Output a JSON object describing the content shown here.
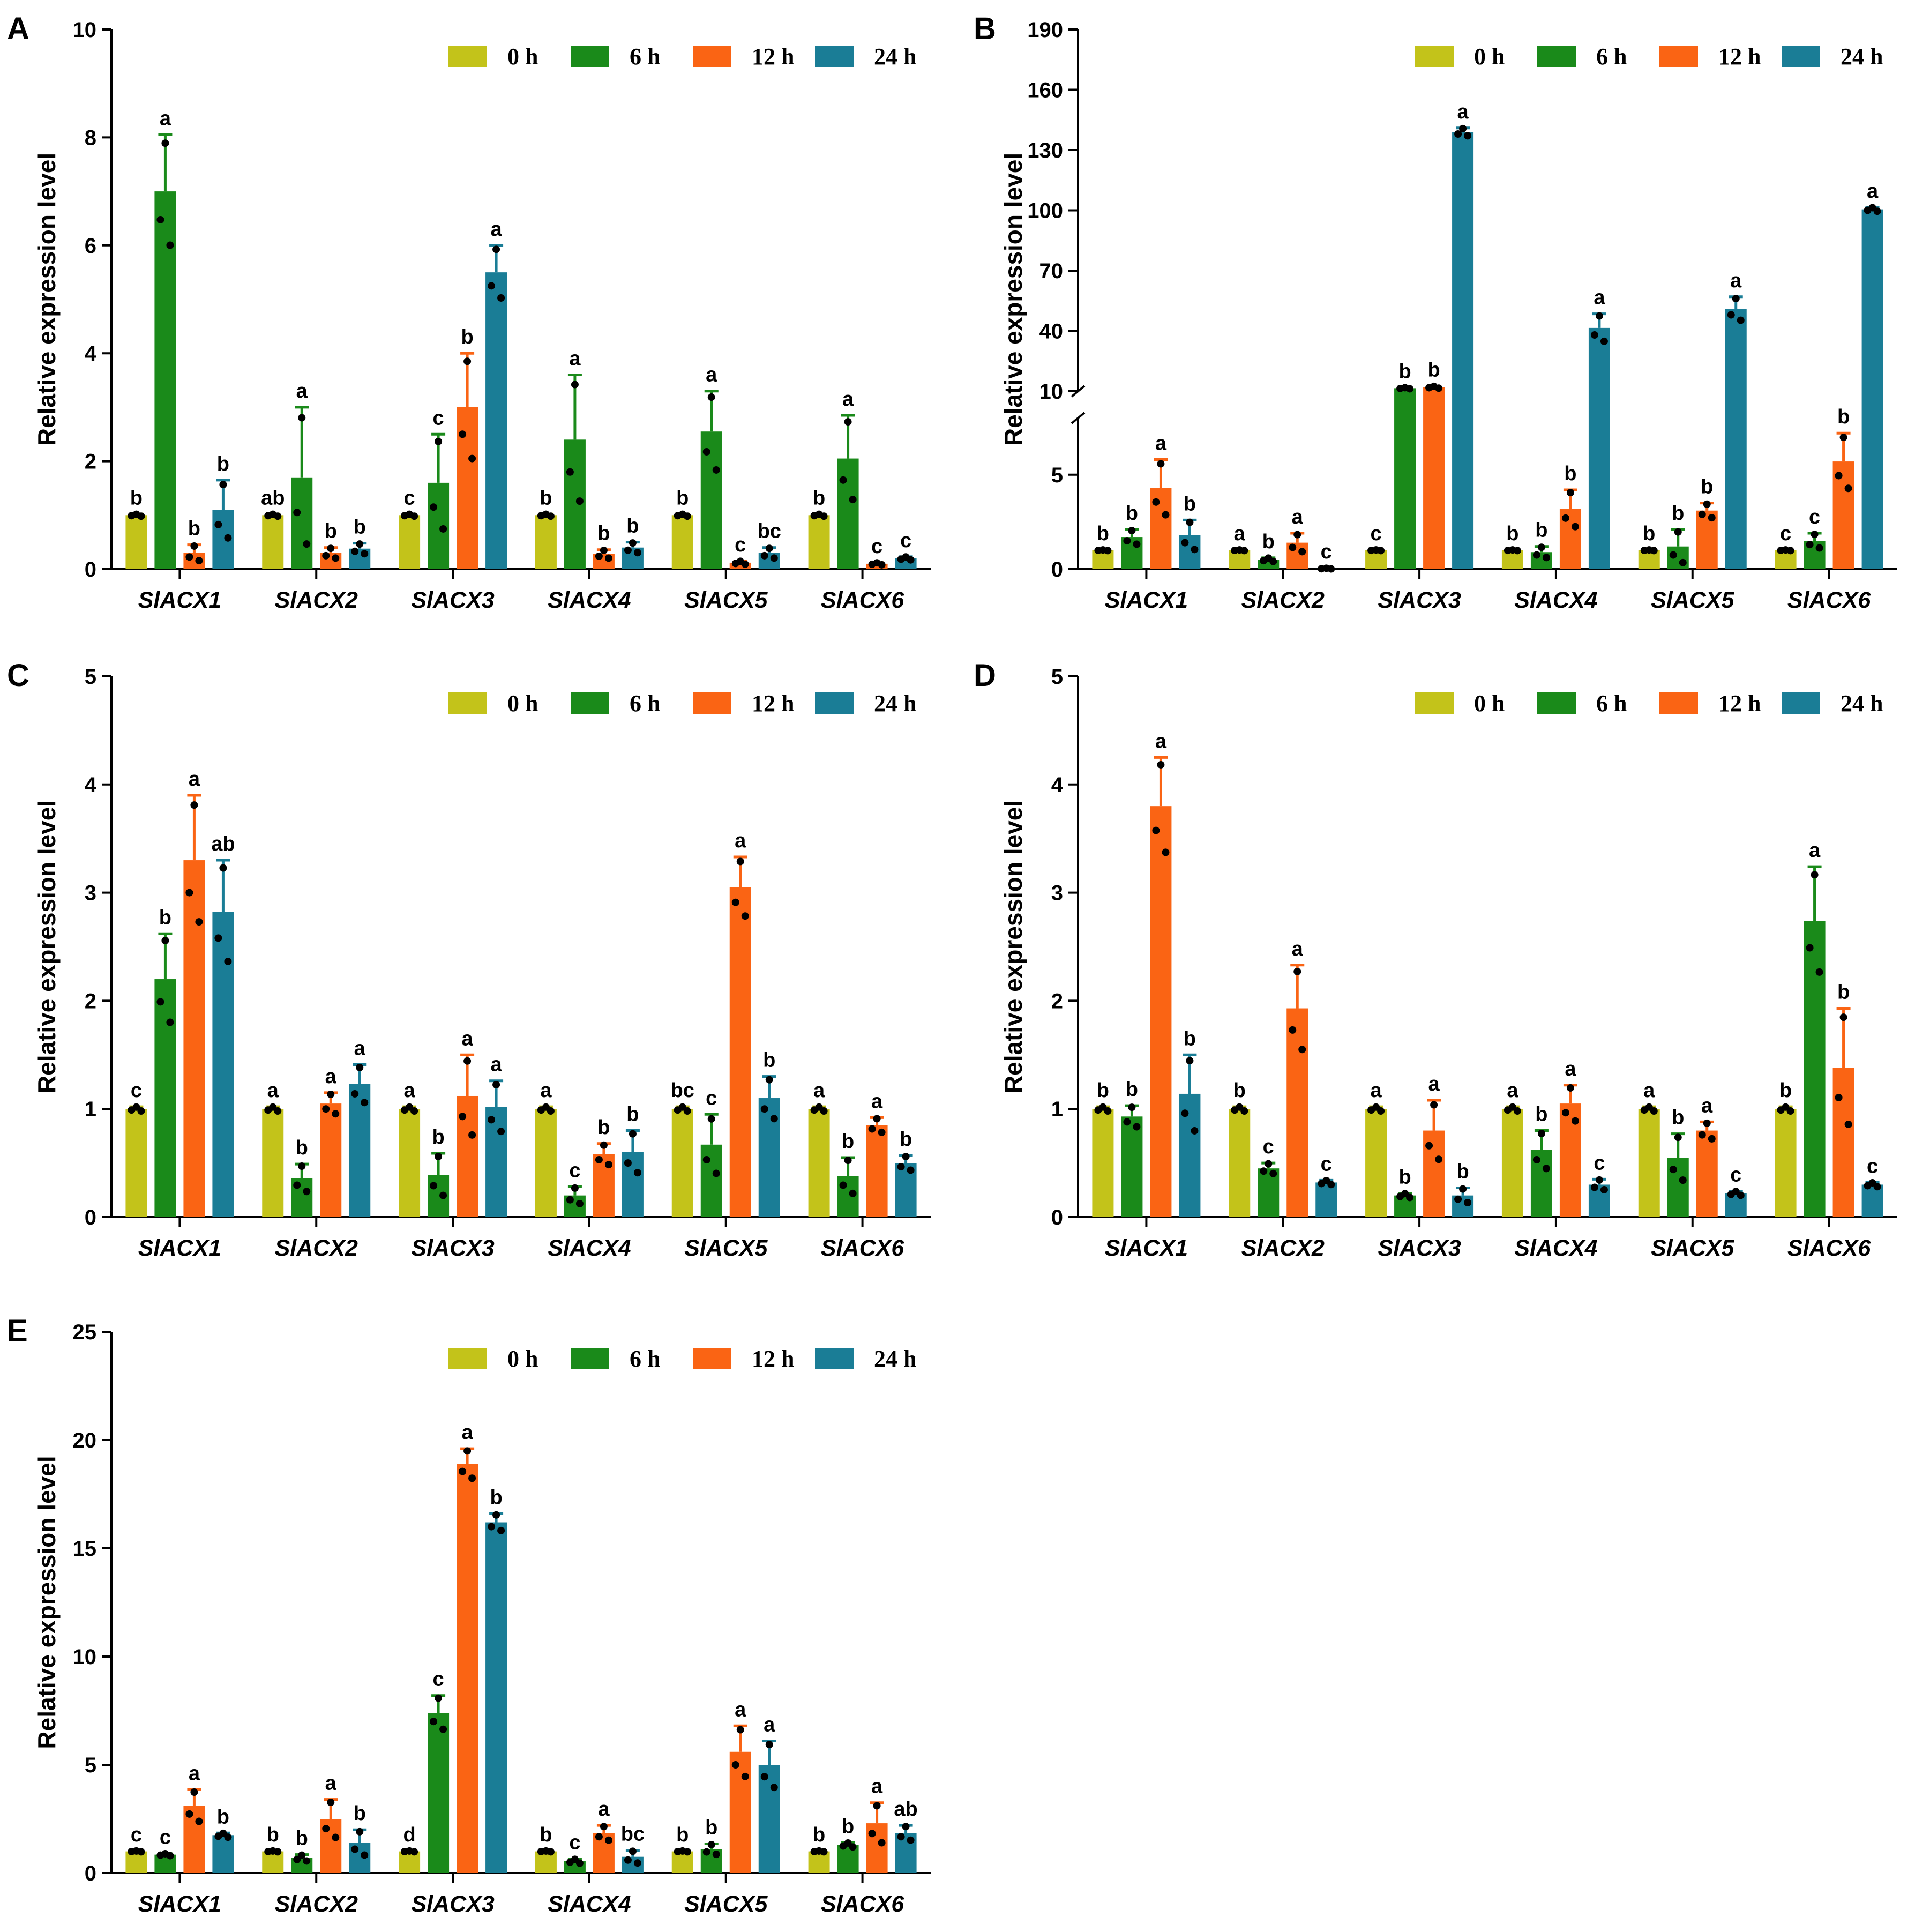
{
  "legend": [
    "0 h",
    "6 h",
    "12 h",
    "24 h"
  ],
  "colors": {
    "0 h": "#c3c31a",
    "6 h": "#1a8a1a",
    "12 h": "#fa6414",
    "24 h": "#1a7d96"
  },
  "chart_data": [
    {
      "panel": "A",
      "type": "bar",
      "ylabel": "Relative expression level",
      "xlabel": "",
      "categories": [
        "SlACX1",
        "SlACX2",
        "SlACX3",
        "SlACX4",
        "SlACX5",
        "SlACX6"
      ],
      "ylim": [
        0,
        10
      ],
      "yticks": [
        0,
        2,
        4,
        6,
        8,
        10
      ],
      "legend_position": "top-right",
      "series": [
        {
          "name": "0 h",
          "values": [
            1,
            1,
            1,
            1,
            1,
            1
          ],
          "errors": [
            0.02,
            0.02,
            0.02,
            0.02,
            0.02,
            0.02
          ],
          "labels": [
            "b",
            "ab",
            "c",
            "b",
            "b",
            "b"
          ]
        },
        {
          "name": "6 h",
          "values": [
            7.0,
            1.7,
            1.6,
            2.4,
            2.55,
            2.05
          ],
          "errors": [
            1.05,
            1.3,
            0.9,
            1.2,
            0.75,
            0.8
          ],
          "labels": [
            "a",
            "a",
            "c",
            "a",
            "a",
            "a"
          ]
        },
        {
          "name": "12 h",
          "values": [
            0.3,
            0.3,
            3.0,
            0.28,
            0.12,
            0.1
          ],
          "errors": [
            0.15,
            0.1,
            1.0,
            0.08,
            0.03,
            0.02
          ],
          "labels": [
            "b",
            "b",
            "b",
            "b",
            "c",
            "c"
          ]
        },
        {
          "name": "24 h",
          "values": [
            1.1,
            0.38,
            5.5,
            0.4,
            0.3,
            0.2
          ],
          "errors": [
            0.55,
            0.1,
            0.5,
            0.1,
            0.1,
            0.03
          ],
          "labels": [
            "b",
            "b",
            "a",
            "b",
            "bc",
            "c"
          ]
        }
      ]
    },
    {
      "panel": "B",
      "type": "bar",
      "ylabel": "Relative expression level",
      "xlabel": "",
      "categories": [
        "SlACX1",
        "SlACX2",
        "SlACX3",
        "SlACX4",
        "SlACX5",
        "SlACX6"
      ],
      "y_axis_break": {
        "lower": [
          0,
          8
        ],
        "upper": [
          10,
          190
        ]
      },
      "yticks_lower": [
        0,
        5
      ],
      "yticks_upper": [
        10,
        40,
        70,
        100,
        130,
        160,
        190
      ],
      "legend_position": "top-right",
      "series": [
        {
          "name": "0 h",
          "values": [
            1,
            1,
            1,
            1,
            1,
            1
          ],
          "errors": [
            0.02,
            0.02,
            0.02,
            0.02,
            0.02,
            0.02
          ],
          "labels": [
            "b",
            "a",
            "c",
            "b",
            "b",
            "c"
          ]
        },
        {
          "name": "6 h",
          "values": [
            1.7,
            0.5,
            11.5,
            0.9,
            1.2,
            1.5
          ],
          "errors": [
            0.4,
            0.1,
            0.3,
            0.3,
            0.9,
            0.4
          ],
          "labels": [
            "b",
            "b",
            "b",
            "b",
            "b",
            "c"
          ]
        },
        {
          "name": "12 h",
          "values": [
            4.3,
            1.4,
            12.0,
            3.2,
            3.1,
            5.7
          ],
          "errors": [
            1.5,
            0.5,
            0.5,
            1.0,
            0.4,
            1.5
          ],
          "labels": [
            "a",
            "a",
            "b",
            "b",
            "b",
            "b"
          ]
        },
        {
          "name": "24 h",
          "values": [
            1.8,
            0.03,
            139,
            41.5,
            51,
            100.5
          ],
          "errors": [
            0.8,
            0.02,
            2,
            7,
            6,
            1
          ],
          "labels": [
            "b",
            "c",
            "a",
            "a",
            "a",
            "a"
          ]
        }
      ]
    },
    {
      "panel": "C",
      "type": "bar",
      "ylabel": "Relative expression level",
      "xlabel": "",
      "categories": [
        "SlACX1",
        "SlACX2",
        "SlACX3",
        "SlACX4",
        "SlACX5",
        "SlACX6"
      ],
      "ylim": [
        0,
        5
      ],
      "yticks": [
        0,
        1,
        2,
        3,
        4,
        5
      ],
      "legend_position": "top-right",
      "series": [
        {
          "name": "0 h",
          "values": [
            1,
            1,
            1,
            1,
            1,
            1
          ],
          "errors": [
            0.02,
            0.02,
            0.02,
            0.02,
            0.02,
            0.02
          ],
          "labels": [
            "c",
            "a",
            "a",
            "a",
            "bc",
            "a"
          ]
        },
        {
          "name": "6 h",
          "values": [
            2.2,
            0.36,
            0.39,
            0.2,
            0.67,
            0.38
          ],
          "errors": [
            0.42,
            0.13,
            0.2,
            0.08,
            0.28,
            0.17
          ],
          "labels": [
            "b",
            "b",
            "b",
            "c",
            "c",
            "b"
          ]
        },
        {
          "name": "12 h",
          "values": [
            3.3,
            1.05,
            1.12,
            0.58,
            3.05,
            0.85
          ],
          "errors": [
            0.6,
            0.1,
            0.38,
            0.1,
            0.28,
            0.07
          ],
          "labels": [
            "a",
            "a",
            "a",
            "b",
            "a",
            "a"
          ]
        },
        {
          "name": "24 h",
          "values": [
            2.82,
            1.23,
            1.02,
            0.6,
            1.1,
            0.5
          ],
          "errors": [
            0.48,
            0.18,
            0.24,
            0.2,
            0.2,
            0.07
          ],
          "labels": [
            "ab",
            "a",
            "a",
            "b",
            "b",
            "b"
          ]
        }
      ]
    },
    {
      "panel": "D",
      "type": "bar",
      "ylabel": "Relative expression level",
      "xlabel": "",
      "categories": [
        "SlACX1",
        "SlACX2",
        "SlACX3",
        "SlACX4",
        "SlACX5",
        "SlACX6"
      ],
      "ylim": [
        0,
        5
      ],
      "yticks": [
        0,
        1,
        2,
        3,
        4,
        5
      ],
      "legend_position": "top-right",
      "series": [
        {
          "name": "0 h",
          "values": [
            1,
            1,
            1,
            1,
            1,
            1
          ],
          "errors": [
            0.02,
            0.02,
            0.02,
            0.02,
            0.02,
            0.02
          ],
          "labels": [
            "b",
            "b",
            "a",
            "a",
            "a",
            "b"
          ]
        },
        {
          "name": "6 h",
          "values": [
            0.93,
            0.45,
            0.2,
            0.62,
            0.55,
            2.74
          ],
          "errors": [
            0.1,
            0.05,
            0.02,
            0.18,
            0.22,
            0.5
          ],
          "labels": [
            "b",
            "c",
            "b",
            "b",
            "b",
            "a"
          ]
        },
        {
          "name": "12 h",
          "values": [
            3.8,
            1.93,
            0.8,
            1.05,
            0.8,
            1.38
          ],
          "errors": [
            0.45,
            0.4,
            0.28,
            0.17,
            0.08,
            0.55
          ],
          "labels": [
            "a",
            "a",
            "a",
            "a",
            "a",
            "b"
          ]
        },
        {
          "name": "24 h",
          "values": [
            1.14,
            0.32,
            0.2,
            0.3,
            0.22,
            0.3
          ],
          "errors": [
            0.36,
            0.02,
            0.07,
            0.05,
            0.02,
            0.02
          ],
          "labels": [
            "b",
            "c",
            "b",
            "c",
            "c",
            "c"
          ]
        }
      ]
    },
    {
      "panel": "E",
      "type": "bar",
      "ylabel": "Relative expression level",
      "xlabel": "",
      "categories": [
        "SlACX1",
        "SlACX2",
        "SlACX3",
        "SlACX4",
        "SlACX5",
        "SlACX6"
      ],
      "ylim": [
        0,
        25
      ],
      "yticks": [
        0,
        5,
        10,
        15,
        20,
        25
      ],
      "legend_position": "top-right",
      "series": [
        {
          "name": "0 h",
          "values": [
            1,
            1,
            1,
            1,
            1,
            1
          ],
          "errors": [
            0.02,
            0.02,
            0.02,
            0.02,
            0.02,
            0.02
          ],
          "labels": [
            "c",
            "b",
            "d",
            "b",
            "b",
            "b"
          ]
        },
        {
          "name": "6 h",
          "values": [
            0.85,
            0.7,
            7.4,
            0.55,
            1.1,
            1.3
          ],
          "errors": [
            0.05,
            0.15,
            0.8,
            0.1,
            0.25,
            0.1
          ],
          "labels": [
            "c",
            "b",
            "c",
            "c",
            "b",
            "b"
          ]
        },
        {
          "name": "12 h",
          "values": [
            3.1,
            2.5,
            18.9,
            1.85,
            5.6,
            2.3
          ],
          "errors": [
            0.75,
            0.9,
            0.7,
            0.35,
            1.2,
            0.95
          ],
          "labels": [
            "a",
            "a",
            "a",
            "a",
            "a",
            "a"
          ]
        },
        {
          "name": "24 h",
          "values": [
            1.75,
            1.4,
            16.2,
            0.75,
            5.0,
            1.85
          ],
          "errors": [
            0.1,
            0.6,
            0.4,
            0.3,
            1.1,
            0.35
          ],
          "labels": [
            "b",
            "b",
            "b",
            "bc",
            "a",
            "ab"
          ]
        }
      ]
    }
  ]
}
